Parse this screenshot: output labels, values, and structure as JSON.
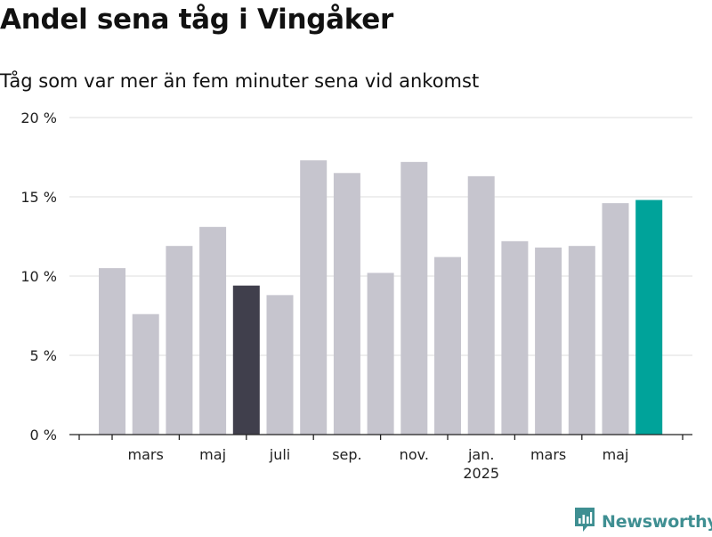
{
  "chart_data": {
    "type": "bar",
    "title": "Andel sena tåg i Vingåker",
    "subtitle": "Tåg som var mer än fem minuter sena vid ankomst",
    "xlabel": "",
    "ylabel": "",
    "categories": [
      "2024-02",
      "2024-03",
      "2024-04",
      "2024-05",
      "2024-06",
      "2024-07",
      "2024-08",
      "2024-09",
      "2024-10",
      "2024-11",
      "2024-12",
      "2025-01",
      "2025-02",
      "2025-03",
      "2025-04",
      "2025-05",
      "2025-06"
    ],
    "values": [
      10.5,
      7.6,
      11.9,
      13.1,
      9.4,
      8.8,
      17.3,
      16.5,
      10.2,
      17.2,
      11.2,
      16.3,
      12.2,
      11.8,
      11.9,
      14.6,
      14.8
    ],
    "ylim": [
      0,
      20
    ],
    "yticks": [
      0,
      5,
      10,
      15,
      20
    ],
    "ytick_labels": [
      "0 %",
      "5 %",
      "10 %",
      "15 %",
      "20 %"
    ],
    "xtick_labels": [
      {
        "category": "2024-03",
        "label": "mars"
      },
      {
        "category": "2024-05",
        "label": "maj"
      },
      {
        "category": "2024-07",
        "label": "juli"
      },
      {
        "category": "2024-09",
        "label": "sep."
      },
      {
        "category": "2024-11",
        "label": "nov."
      },
      {
        "category": "2025-01",
        "label": "jan.",
        "sublabel": "2025"
      },
      {
        "category": "2025-03",
        "label": "mars"
      },
      {
        "category": "2025-05",
        "label": "maj"
      }
    ],
    "highlights": [
      {
        "category": "2024-06",
        "color": "#403f4c"
      },
      {
        "category": "2025-06",
        "color": "#00a39a"
      }
    ],
    "default_bar_color": "#c6c5ce",
    "grid": true
  },
  "brand": {
    "name": "Newsworthy",
    "icon": "newsworthy-logo-icon",
    "color": "#3f8f92"
  }
}
